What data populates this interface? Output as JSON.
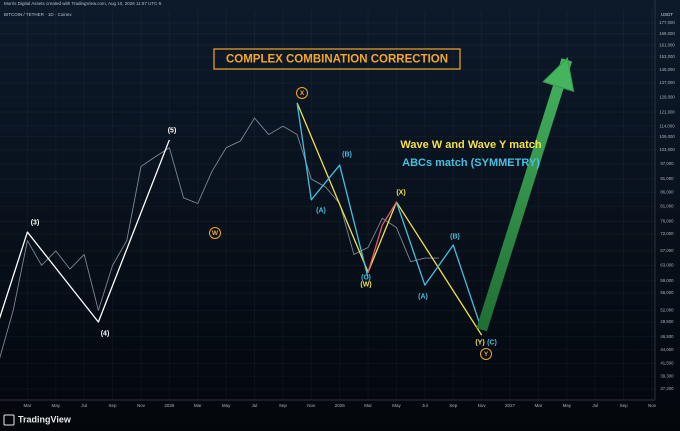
{
  "header": {
    "credit": "Morris Digital Assets created with TradingView.com, Aug 10, 2026 11:57 UTC-5",
    "symbol": "BITCOIN / TETHER · 1D · Coinex",
    "unit": "USDT"
  },
  "footer": {
    "brand": "TradingView"
  },
  "chart_data": {
    "type": "line",
    "title": "COMPLEX COMBINATION CORRECTION",
    "notes": [
      {
        "text": "Wave W and Wave Y match",
        "color": "#f2e04b"
      },
      {
        "text": "ABCs match (SYMMETRY)",
        "color": "#46bfe0"
      }
    ],
    "annotations": [
      "(3)",
      "(4)",
      "(5)",
      "W",
      "X",
      "(A)",
      "(B)",
      "(C)",
      "(W)",
      "(X)",
      "(A)",
      "(B)",
      "(Y)",
      "(C)",
      "Y"
    ],
    "log_scale": true,
    "grid": true,
    "xlim": [
      "2024-01",
      "2027-11"
    ],
    "xticks": [
      {
        "value": "2024-03",
        "label": "Mar"
      },
      {
        "value": "2024-05",
        "label": "May"
      },
      {
        "value": "2024-07",
        "label": "Jul"
      },
      {
        "value": "2024-09",
        "label": "Sep"
      },
      {
        "value": "2024-11",
        "label": "Nov"
      },
      {
        "value": "2025-01",
        "label": "2025"
      },
      {
        "value": "2025-03",
        "label": "Mar"
      },
      {
        "value": "2025-05",
        "label": "May"
      },
      {
        "value": "2025-07",
        "label": "Jul"
      },
      {
        "value": "2025-09",
        "label": "Sep"
      },
      {
        "value": "2025-11",
        "label": "Nov"
      },
      {
        "value": "2026-01",
        "label": "2026"
      },
      {
        "value": "2026-03",
        "label": "Mar"
      },
      {
        "value": "2026-05",
        "label": "May"
      },
      {
        "value": "2026-07",
        "label": "Jul"
      },
      {
        "value": "2026-09",
        "label": "Sep"
      },
      {
        "value": "2026-11",
        "label": "Nov"
      },
      {
        "value": "2027-01",
        "label": "2027"
      },
      {
        "value": "2027-03",
        "label": "Mar"
      },
      {
        "value": "2027-05",
        "label": "May"
      },
      {
        "value": "2027-07",
        "label": "Jul"
      },
      {
        "value": "2027-09",
        "label": "Sep"
      },
      {
        "value": "2027-11",
        "label": "Nov"
      }
    ],
    "ylim": [
      35500,
      187000
    ],
    "yticks": [
      {
        "value": 177000,
        "label": "177,000"
      },
      {
        "value": 169000,
        "label": "169,000"
      },
      {
        "value": 161000,
        "label": "161,000"
      },
      {
        "value": 153000,
        "label": "153,000"
      },
      {
        "value": 145000,
        "label": "145,000"
      },
      {
        "value": 137000,
        "label": "137,000"
      },
      {
        "value": 129000,
        "label": "129,000"
      },
      {
        "value": 121000,
        "label": "121,000"
      },
      {
        "value": 114000,
        "label": "114,000"
      },
      {
        "value": 109000,
        "label": "109,000"
      },
      {
        "value": 103000,
        "label": "103,000"
      },
      {
        "value": 97000,
        "label": "97,000"
      },
      {
        "value": 91000,
        "label": "91,000"
      },
      {
        "value": 86000,
        "label": "86,000"
      },
      {
        "value": 81000,
        "label": "81,000"
      },
      {
        "value": 76000,
        "label": "76,000"
      },
      {
        "value": 72000,
        "label": "72,000"
      },
      {
        "value": 67000,
        "label": "67,000"
      },
      {
        "value": 63000,
        "label": "63,000"
      },
      {
        "value": 59000,
        "label": "59,000"
      },
      {
        "value": 56000,
        "label": "56,000"
      },
      {
        "value": 52000,
        "label": "52,000"
      },
      {
        "value": 49500,
        "label": "49,500"
      },
      {
        "value": 46500,
        "label": "46,500"
      },
      {
        "value": 44000,
        "label": "44,000"
      },
      {
        "value": 41500,
        "label": "41,500"
      },
      {
        "value": 39300,
        "label": "39,300"
      },
      {
        "value": 37200,
        "label": "37,200"
      }
    ],
    "series": [
      {
        "color": "#7d8791",
        "x": [
          "2024-01",
          "2024-02",
          "2024-03",
          "2024-04",
          "2024-05",
          "2024-06",
          "2024-07",
          "2024-08",
          "2024-09",
          "2024-10",
          "2024-11",
          "2024-12",
          "2025-01",
          "2025-02",
          "2025-03",
          "2025-04",
          "2025-05",
          "2025-06",
          "2025-07",
          "2025-08",
          "2025-09",
          "2025-10",
          "2025-11",
          "2025-12",
          "2026-01",
          "2026-02",
          "2026-03",
          "2026-04",
          "2026-05",
          "2026-06",
          "2026-07",
          "2026-08"
        ],
        "values": [
          42000,
          52000,
          70000,
          63000,
          67000,
          62000,
          66000,
          52000,
          63000,
          70000,
          96000,
          100000,
          104000,
          84000,
          82000,
          94000,
          104000,
          107000,
          118000,
          110000,
          114000,
          110000,
          91000,
          88000,
          82000,
          66000,
          68000,
          77000,
          74000,
          64000,
          65000,
          65000
        ]
      },
      {
        "color": "#ffffff",
        "x": [
          "2024-01",
          "2024-03",
          "2024-08",
          "2025-01"
        ],
        "values": [
          49900,
          72600,
          49500,
          107500
        ]
      },
      {
        "color": "#f2e04b",
        "x": [
          "2025-10",
          "2026-03",
          "2026-05",
          "2026-11"
        ],
        "values": [
          125900,
          61200,
          82500,
          46800
        ]
      },
      {
        "color": "#46bfe0",
        "x": [
          "2025-10",
          "2025-11",
          "2026-01",
          "2026-03",
          "2026-05",
          "2026-05",
          "2026-07",
          "2026-09",
          "2026-11"
        ],
        "values": [
          125900,
          83300,
          96600,
          59700,
          null,
          82500,
          57900,
          68700,
          47900
        ]
      },
      {
        "color": "#e8556b",
        "x": [
          "2026-03",
          "2026-04",
          "2026-05"
        ],
        "values": [
          61200,
          74800,
          82500
        ]
      },
      {
        "color": "#2f9e4c",
        "x": [
          "2026-11",
          "2027-05"
        ],
        "values": [
          47900,
          151200
        ]
      }
    ]
  }
}
